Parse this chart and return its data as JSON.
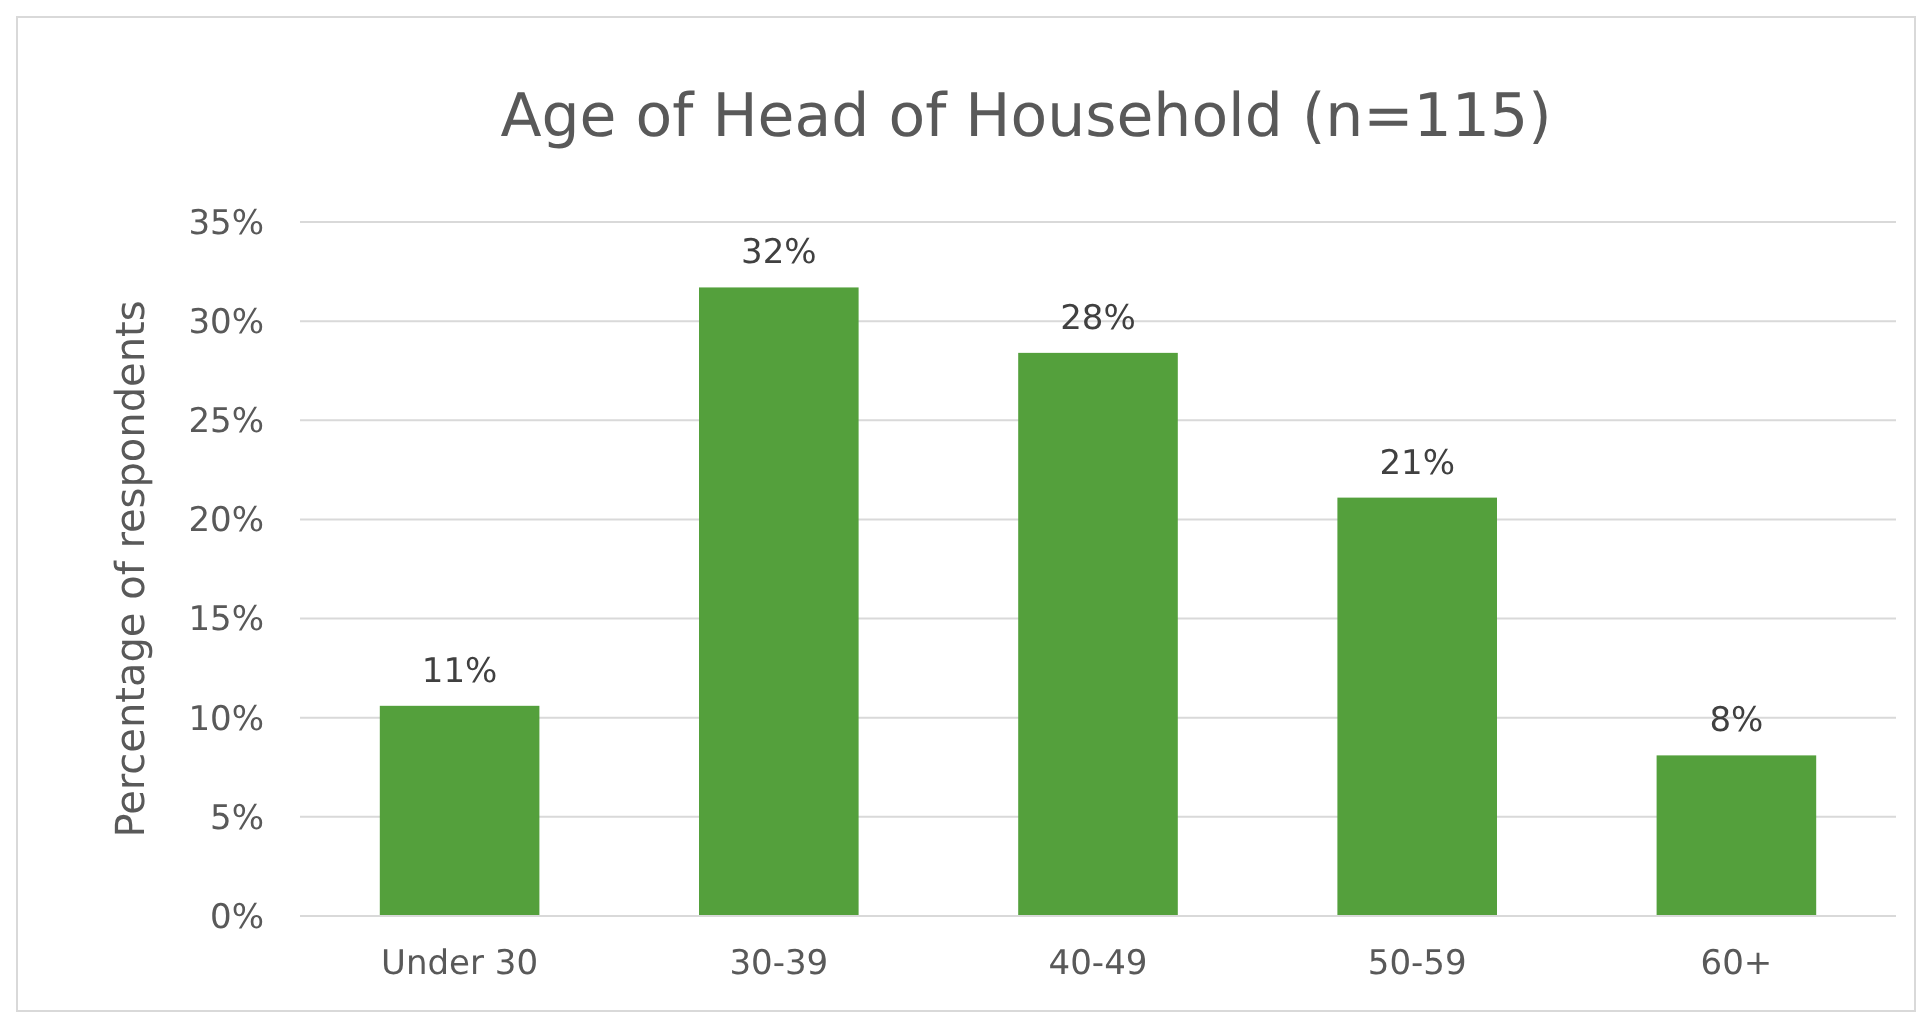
{
  "chart_data": {
    "type": "bar",
    "title": "Age of Head of Household (n=115)",
    "ylabel": "Percentage of respondents",
    "categories": [
      "Under 30",
      "30-39",
      "40-49",
      "50-59",
      "60+"
    ],
    "values": [
      10.6,
      31.7,
      28.4,
      21.1,
      8.1
    ],
    "value_labels": [
      "11%",
      "32%",
      "28%",
      "21%",
      "8%"
    ],
    "color": "#54a03c",
    "ylim": [
      0,
      35
    ],
    "yticks": [
      {
        "value": 0,
        "label": "0%"
      },
      {
        "value": 5,
        "label": "5%"
      },
      {
        "value": 10,
        "label": "10%"
      },
      {
        "value": 15,
        "label": "15%"
      },
      {
        "value": 20,
        "label": "20%"
      },
      {
        "value": 25,
        "label": "25%"
      },
      {
        "value": 30,
        "label": "30%"
      },
      {
        "value": 35,
        "label": "35%"
      }
    ],
    "grid": "y"
  }
}
